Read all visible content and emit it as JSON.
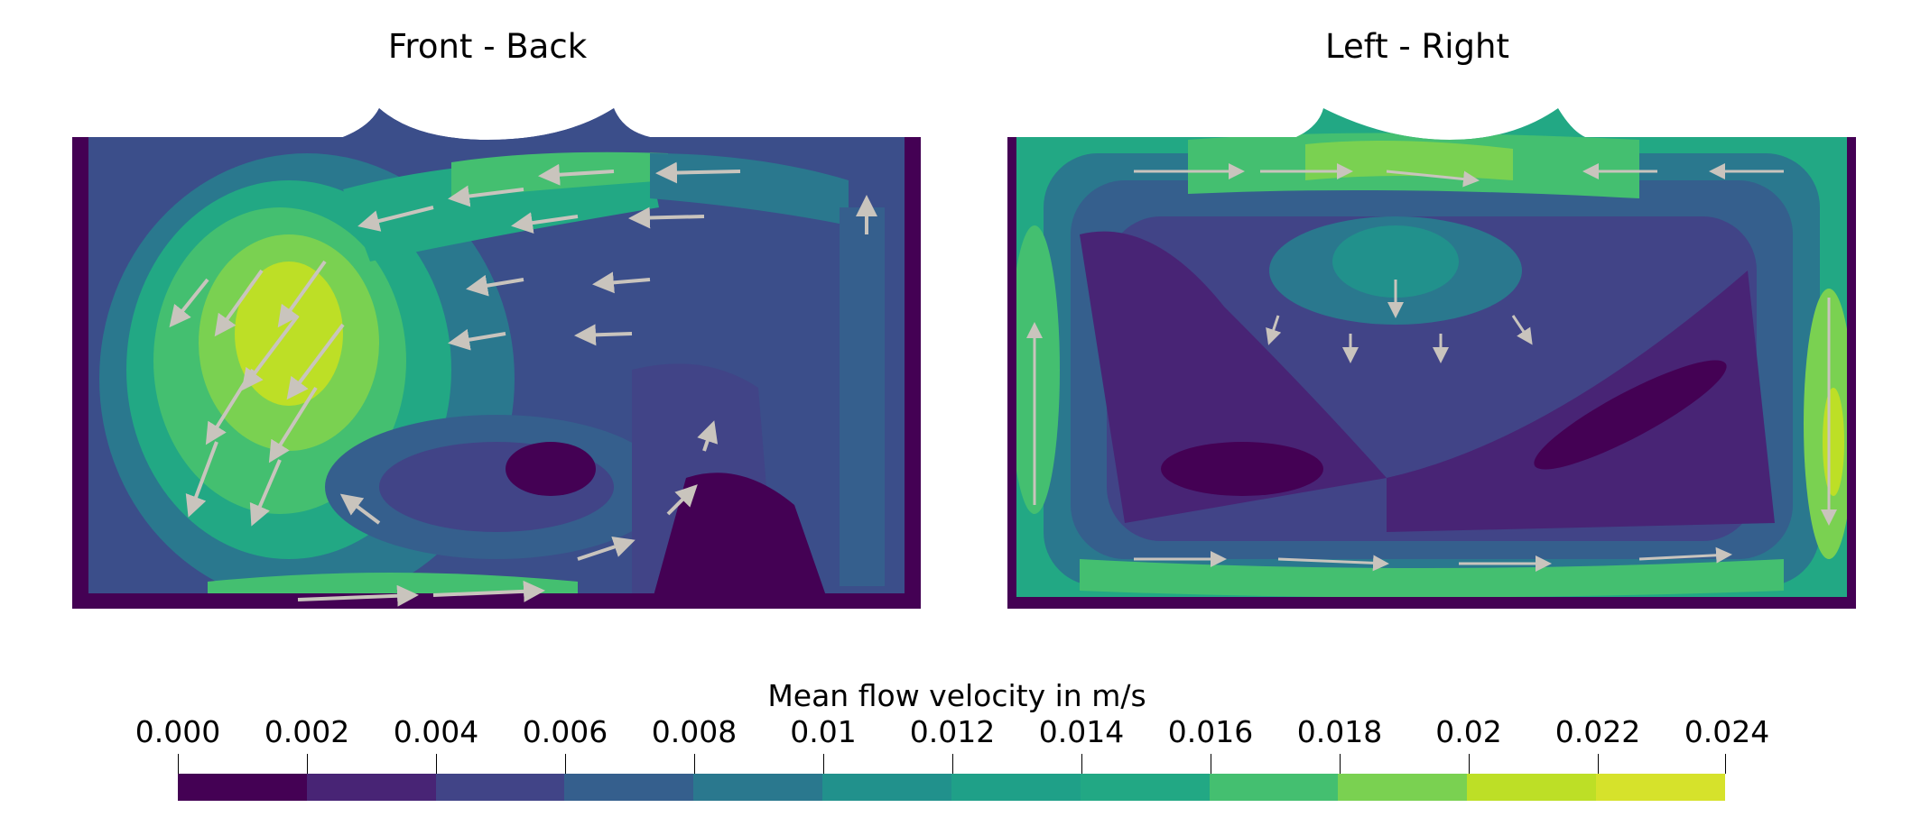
{
  "panels": [
    {
      "title": "Front - Back"
    },
    {
      "title": "Left - Right"
    }
  ],
  "legend": {
    "title": "Mean flow velocity in m/s",
    "ticks": [
      "0.000",
      "0.002",
      "0.004",
      "0.006",
      "0.008",
      "0.01",
      "0.012",
      "0.014",
      "0.016",
      "0.018",
      "0.02",
      "0.022",
      "0.024"
    ],
    "colors": [
      "#440154",
      "#482475",
      "#414487",
      "#355f8d",
      "#2a788e",
      "#21918c",
      "#1fa088",
      "#22a884",
      "#44bf70",
      "#7ad151",
      "#bddf26",
      "#d6e22b",
      "#fde725"
    ]
  },
  "colors": {
    "vector": "#c9c4bd",
    "background": "#ffffff"
  }
}
